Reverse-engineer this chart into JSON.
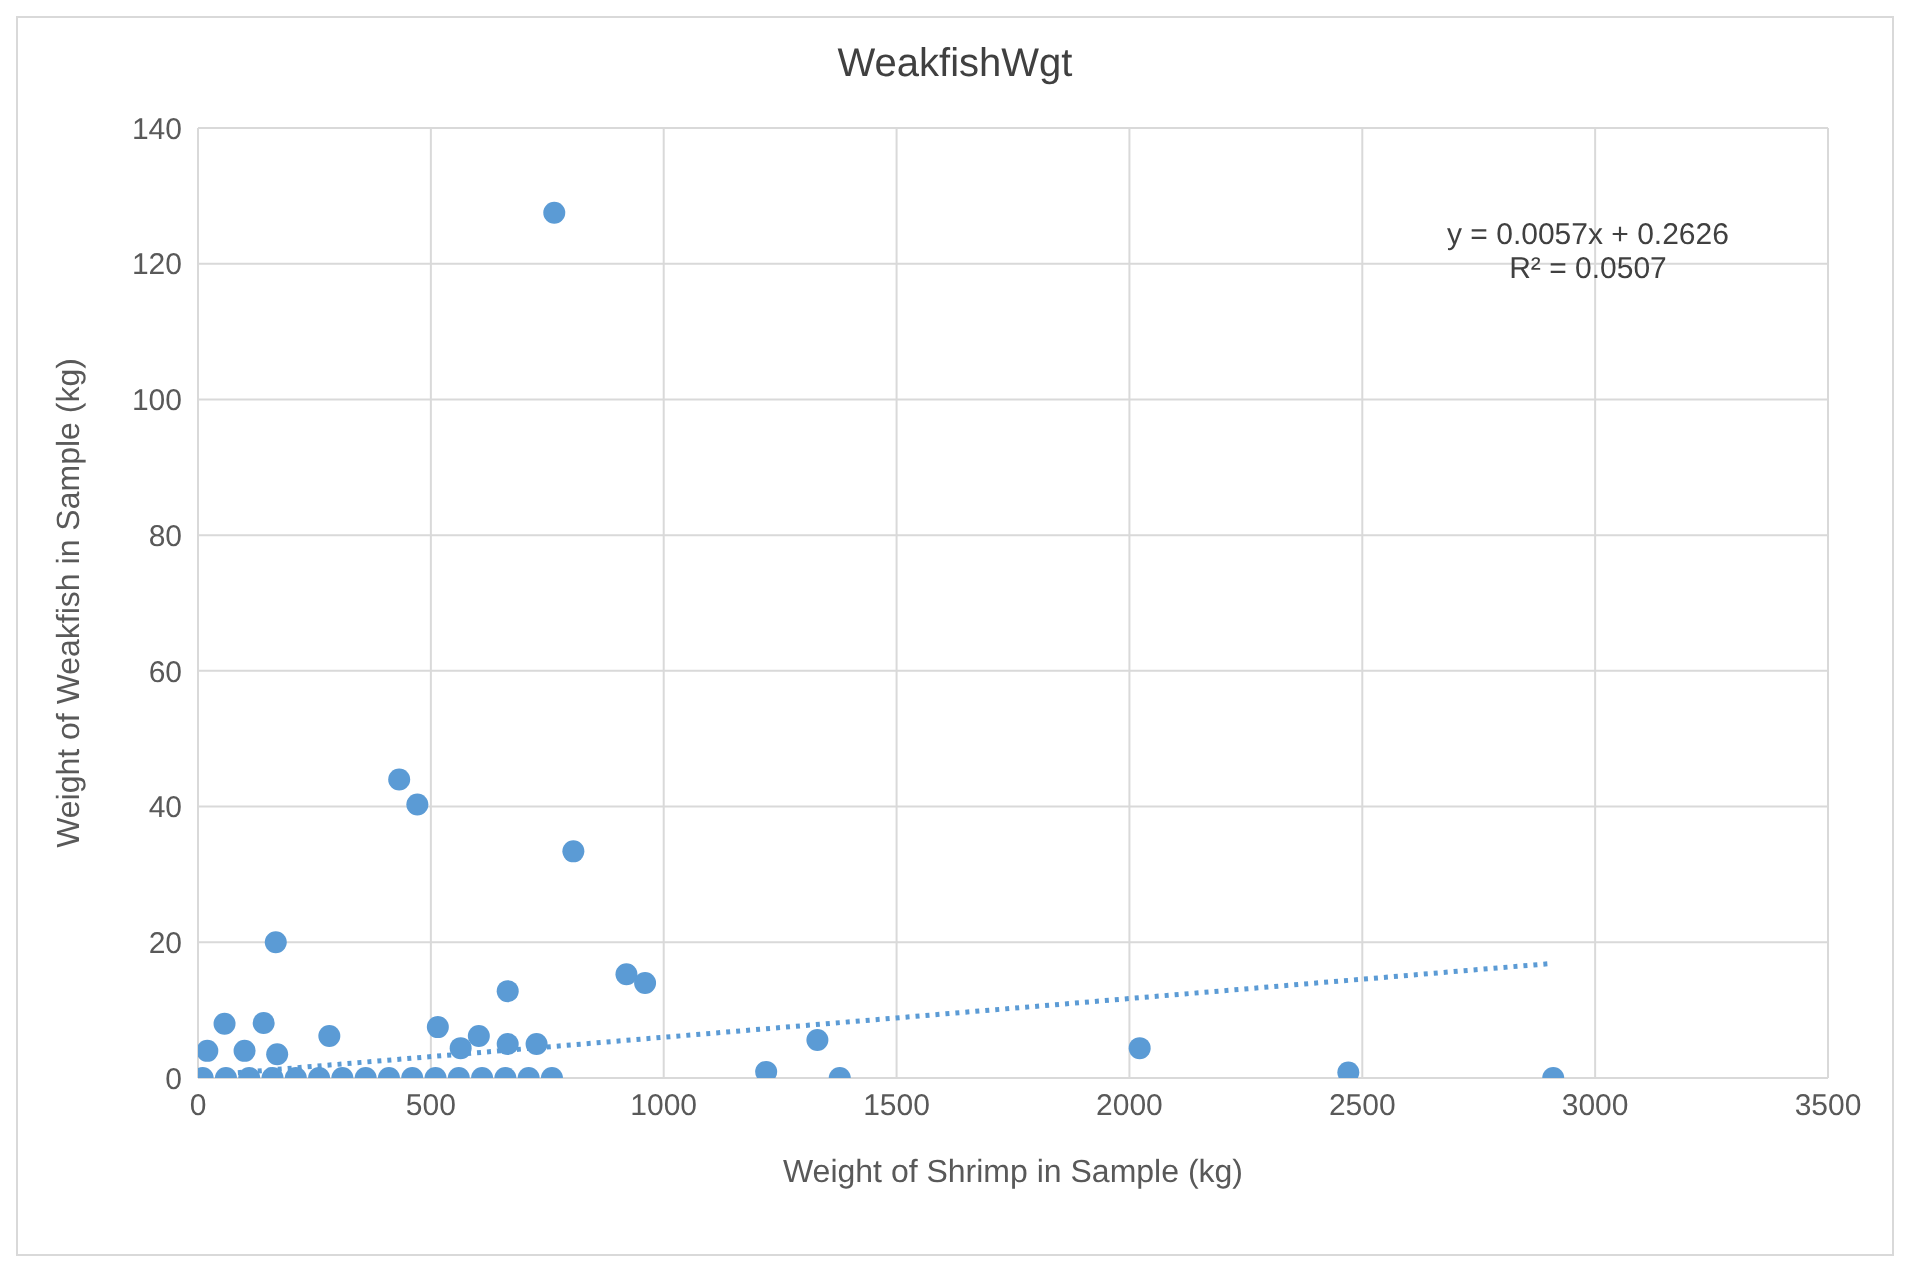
{
  "chart_data": {
    "type": "scatter",
    "title": "WeakfishWgt",
    "xlabel": "Weight of Shrimp in Sample (kg)",
    "ylabel": "Weight of Weakfish in Sample (kg)",
    "xlim": [
      0,
      3500
    ],
    "xticks": [
      0,
      500,
      1000,
      1500,
      2000,
      2500,
      3000,
      3500
    ],
    "ylim": [
      0,
      140
    ],
    "yticks": [
      0,
      20,
      40,
      60,
      80,
      100,
      120,
      140
    ],
    "grid": true,
    "marker": "circle",
    "annotations": [
      "y = 0.0057x + 0.2626",
      "R² = 0.0507"
    ],
    "series": [
      {
        "color": "#5b9bd5",
        "x": [
          765,
          432,
          471,
          806,
          167,
          920,
          960,
          665,
          141,
          282,
          515,
          603,
          665,
          727,
          564,
          1220,
          1378,
          1330,
          2022,
          2470,
          2910,
          57,
          20,
          100,
          170,
          10,
          60,
          110,
          160,
          210,
          260,
          310,
          360,
          410,
          460,
          510,
          560,
          610,
          660,
          710,
          760
        ],
        "values": [
          127.5,
          44,
          40.3,
          33.4,
          20,
          15.3,
          14,
          12.8,
          8.1,
          6.2,
          7.5,
          6.2,
          5,
          5,
          4.4,
          0.9,
          0,
          5.6,
          4.4,
          0.8,
          0,
          8,
          4,
          4,
          3.5,
          0,
          0,
          0,
          0,
          0,
          0,
          0,
          0,
          0,
          0,
          0,
          0,
          0,
          0,
          0,
          0
        ]
      },
      {
        "type": "line",
        "color": "#5b9bd5",
        "line_style": "dotted",
        "marker": "none",
        "x": [
          0,
          2910
        ],
        "values": [
          0.3,
          16.9
        ]
      }
    ]
  }
}
